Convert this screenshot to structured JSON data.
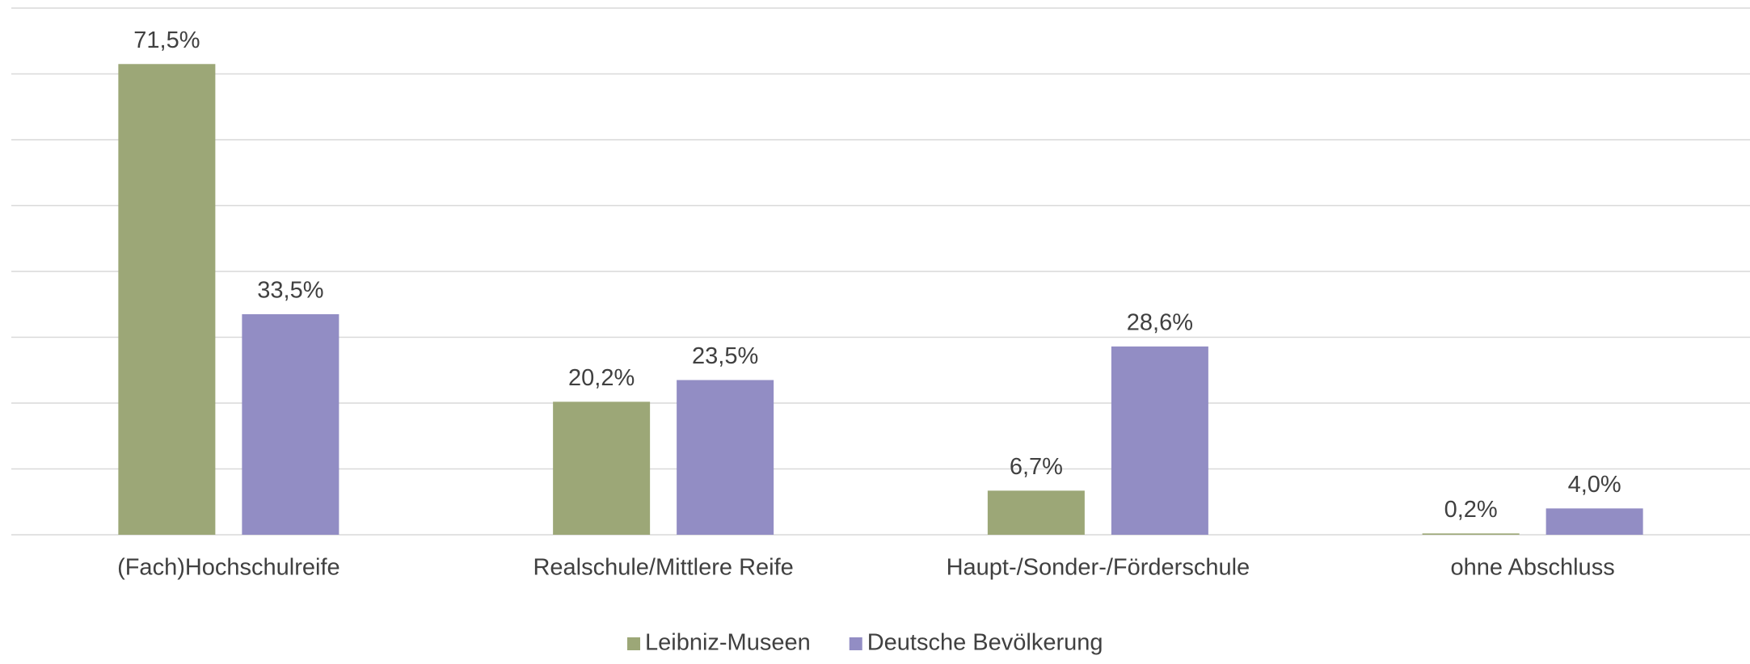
{
  "chart_data": {
    "type": "bar",
    "categories": [
      "(Fach)Hochschulreife",
      "Realschule/Mittlere Reife",
      "Haupt-/Sonder-/Förderschule",
      "ohne Abschluss"
    ],
    "series": [
      {
        "name": "Leibniz-Museen",
        "color": "#9ca777",
        "values": [
          71.5,
          20.2,
          6.7,
          0.2
        ],
        "value_labels": [
          "71,5%",
          "20,2%",
          "6,7%",
          "0,2%"
        ]
      },
      {
        "name": "Deutsche Bevölkerung",
        "color": "#928dc4",
        "values": [
          33.5,
          23.5,
          28.6,
          4.0
        ],
        "value_labels": [
          "33,5%",
          "23,5%",
          "28,6%",
          "4,0%"
        ]
      }
    ],
    "ylim": [
      0,
      80
    ],
    "yticks": [
      0,
      10,
      20,
      30,
      40,
      50,
      60,
      70,
      80
    ],
    "grid": true,
    "legend": "bottom"
  }
}
